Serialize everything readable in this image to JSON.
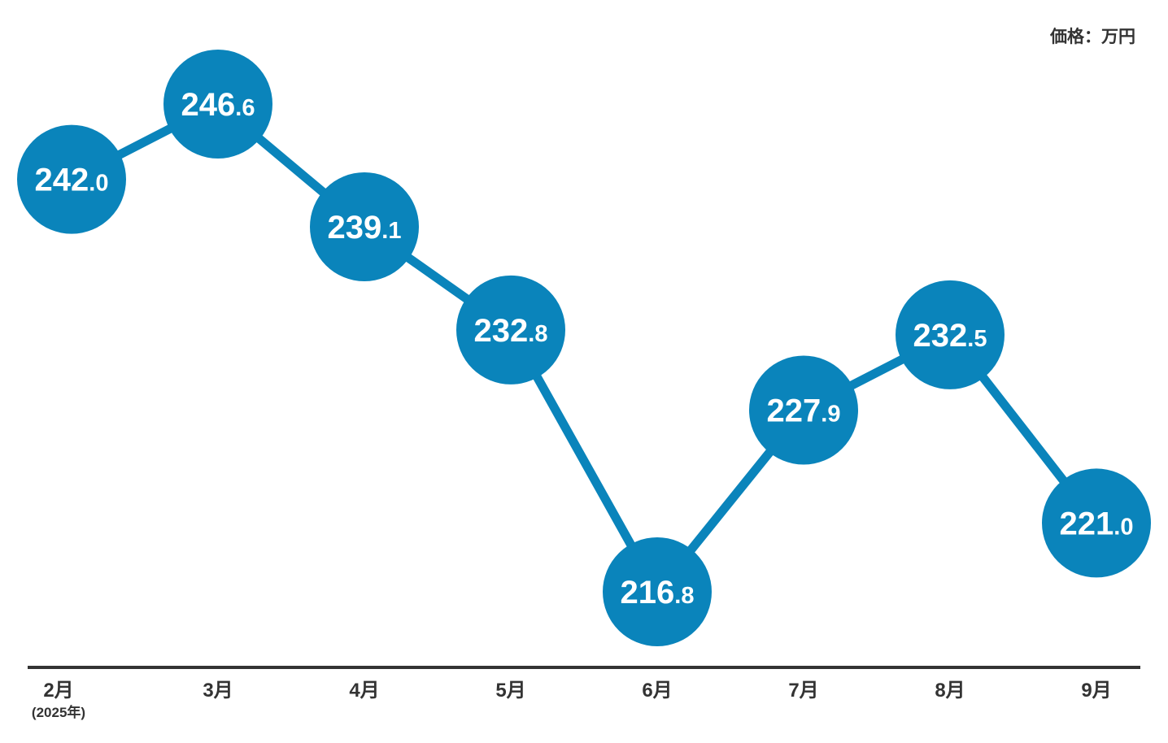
{
  "chart_data": {
    "type": "line",
    "unit_label": "価格：万円",
    "categories": [
      "2月",
      "3月",
      "4月",
      "5月",
      "6月",
      "7月",
      "8月",
      "9月"
    ],
    "first_category_sub": "(2025年)",
    "values": [
      242.0,
      246.6,
      239.1,
      232.8,
      216.8,
      227.9,
      232.5,
      221.0
    ],
    "value_labels": [
      {
        "int": "242",
        "dec": ".0"
      },
      {
        "int": "246",
        "dec": ".6"
      },
      {
        "int": "239",
        "dec": ".1"
      },
      {
        "int": "232",
        "dec": ".8"
      },
      {
        "int": "216",
        "dec": ".8"
      },
      {
        "int": "227",
        "dec": ".9"
      },
      {
        "int": "232",
        "dec": ".5"
      },
      {
        "int": "221",
        "dec": ".0"
      }
    ],
    "ylim": [
      200,
      250
    ],
    "grid": false,
    "legend": "none",
    "colors": {
      "marker": "#0a84bb",
      "line": "#0a84bb",
      "axis": "#333333",
      "label_text": "#ffffff"
    }
  }
}
